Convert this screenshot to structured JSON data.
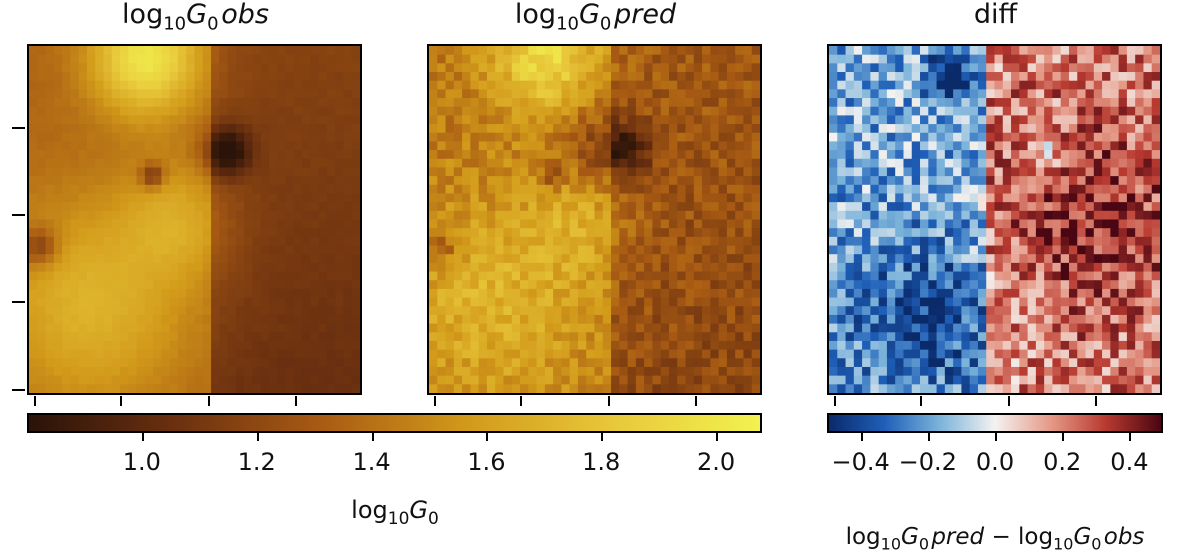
{
  "panels": [
    {
      "title_prefix": "log",
      "title_sub": "10",
      "title_var": "G",
      "title_var_sub": "0",
      "title_suffix": "obs"
    },
    {
      "title_prefix": "log",
      "title_sub": "10",
      "title_var": "G",
      "title_var_sub": "0",
      "title_suffix": "pred"
    },
    {
      "title": "diff"
    }
  ],
  "chart_data": [
    {
      "type": "heatmap",
      "title": "log10G0 obs",
      "grid": "40x40 pixels",
      "colormap": "gold",
      "value_range": [
        0.8,
        2.08
      ]
    },
    {
      "type": "heatmap",
      "title": "log10G0 pred",
      "grid": "40x40 pixels",
      "colormap": "gold",
      "value_range": [
        0.8,
        2.08
      ]
    },
    {
      "type": "heatmap",
      "title": "diff",
      "grid": "40x40 pixels",
      "colormap": "diverging blue-white-red",
      "value_range": [
        -0.5,
        0.5
      ]
    }
  ],
  "colorbar_main": {
    "ticks": [
      "1.0",
      "1.2",
      "1.4",
      "1.6",
      "1.8",
      "2.0"
    ],
    "tick_values": [
      1.0,
      1.2,
      1.4,
      1.6,
      1.8,
      2.0
    ],
    "range": [
      0.8,
      2.08
    ],
    "label_prefix": "log",
    "label_sub": "10",
    "label_var": "G",
    "label_var_sub": "0",
    "colors": [
      "#2a1308",
      "#6b3010",
      "#a85b13",
      "#d29a1a",
      "#e8c83a",
      "#f2f250"
    ]
  },
  "colorbar_diff": {
    "ticks": [
      "−0.4",
      "−0.2",
      "0.0",
      "0.2",
      "0.4"
    ],
    "tick_values": [
      -0.4,
      -0.2,
      0.0,
      0.2,
      0.4
    ],
    "range": [
      -0.5,
      0.5
    ],
    "label_a_prefix": "log",
    "label_a_sub": "10",
    "label_a_var": "G",
    "label_a_var_sub": "0",
    "label_a_suffix": "pred",
    "label_minus": "−",
    "label_b_prefix": "log",
    "label_b_sub": "10",
    "label_b_var": "G",
    "label_b_var_sub": "0",
    "label_b_suffix": "obs",
    "colors": [
      "#0a2a6a",
      "#1f5fb8",
      "#7bb3da",
      "#f4f2f0",
      "#e59a88",
      "#b83a30",
      "#4a0612"
    ]
  }
}
